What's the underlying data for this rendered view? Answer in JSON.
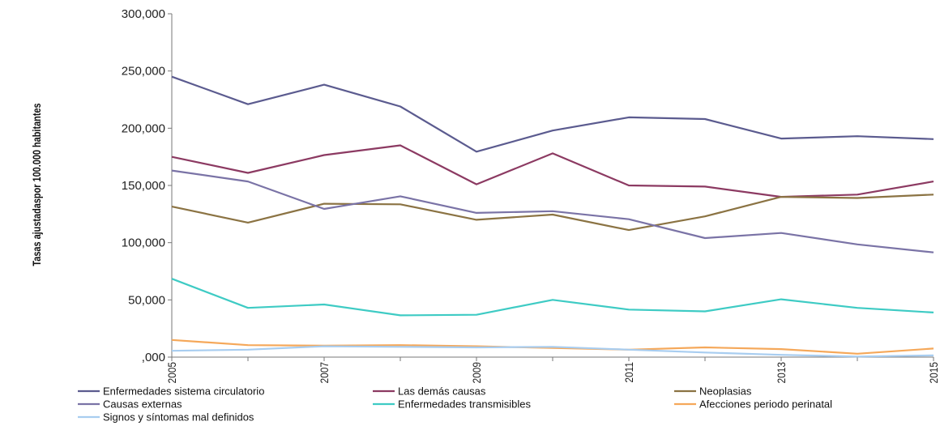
{
  "chart_data": {
    "type": "line",
    "title": "",
    "xlabel": "",
    "ylabel": "Tasas ajustadaspor 100.000 habitantes",
    "x": [
      2005,
      2006,
      2007,
      2008,
      2009,
      2010,
      2011,
      2012,
      2013,
      2014,
      2015
    ],
    "x_tick_labels": [
      "2005",
      "2007",
      "2009",
      "2011",
      "2013",
      "2015"
    ],
    "ylim": [
      0,
      300000
    ],
    "y_tick_labels": [
      ",000",
      "50,000",
      "100,000",
      "150,000",
      "200,000",
      "250,000",
      "300,000"
    ],
    "grid": false,
    "legend_position": "bottom",
    "series": [
      {
        "name": "Enfermedades sistema circulatorio",
        "color": "#5b5b8f",
        "values": [
          245000,
          221000,
          238000,
          219000,
          179500,
          198000,
          209500,
          208000,
          191000,
          193000,
          190500
        ]
      },
      {
        "name": "Las demás causas",
        "color": "#8c3a62",
        "values": [
          175000,
          161000,
          176500,
          185000,
          151000,
          178000,
          150000,
          149000,
          140000,
          142000,
          153500
        ]
      },
      {
        "name": "Neoplasias",
        "color": "#8b7343",
        "values": [
          131500,
          117500,
          134000,
          133500,
          120000,
          124500,
          111000,
          123000,
          140000,
          139000,
          142000
        ]
      },
      {
        "name": "Causas externas",
        "color": "#7a73a6",
        "values": [
          163000,
          153500,
          129500,
          140500,
          126000,
          127500,
          120500,
          104000,
          108500,
          98500,
          91500
        ]
      },
      {
        "name": "Enfermedades transmisibles",
        "color": "#3ecbc4",
        "values": [
          68500,
          43000,
          46000,
          36500,
          37000,
          50000,
          41500,
          40000,
          50500,
          43000,
          39000
        ]
      },
      {
        "name": "Afecciones periodo perinatal",
        "color": "#f5a85a",
        "values": [
          15000,
          10500,
          10000,
          10500,
          9500,
          8000,
          6500,
          8500,
          7000,
          3000,
          7500
        ]
      },
      {
        "name": "Signos y síntomas mal definidos",
        "color": "#a8cdf0",
        "values": [
          5500,
          6500,
          9500,
          9000,
          8500,
          9000,
          6500,
          4000,
          2000,
          500,
          1500
        ]
      }
    ]
  }
}
